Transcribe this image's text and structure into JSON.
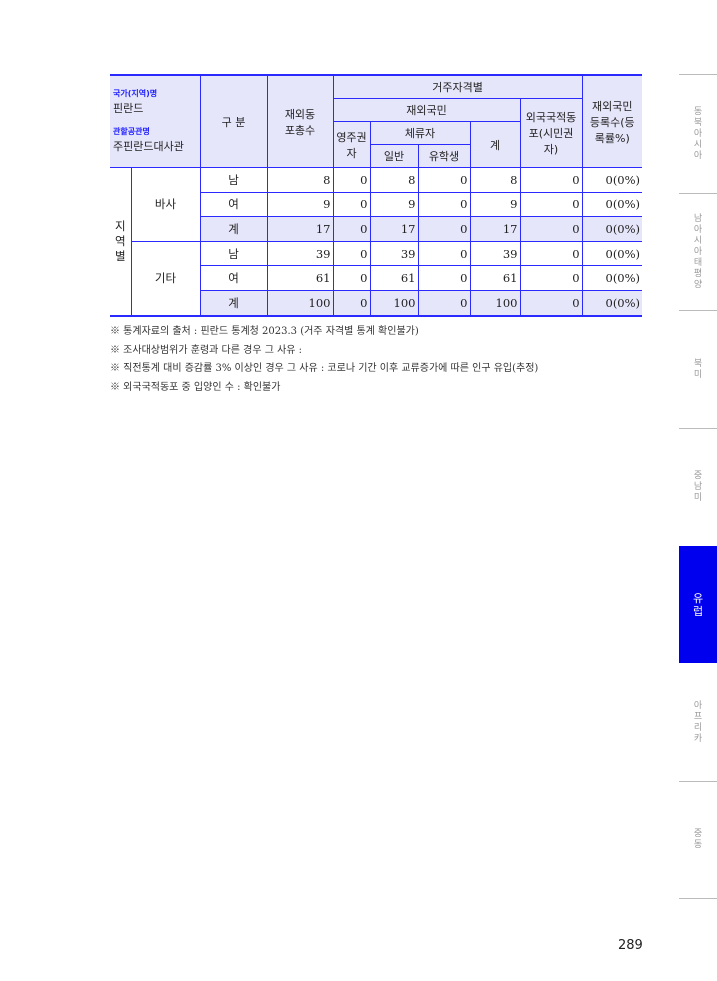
{
  "header": {
    "country_label": "국가(지역)명",
    "country": "핀란드",
    "office_label": "관할공관명",
    "office": "주핀란드대사관",
    "category": "구 분",
    "total": "재외동포총수",
    "residence": "거주자격별",
    "nationals": "재외국민",
    "permanent": "영주권자",
    "sojourner": "체류자",
    "general": "일반",
    "student": "유학생",
    "subtotal": "계",
    "foreign": "외국국적동포(시민권자)",
    "registered": "재외국민등록수(등록률%)"
  },
  "region_label": "지역별",
  "groups": [
    {
      "name": "바사",
      "rows": [
        {
          "sex": "남",
          "total": "8",
          "permanent": "0",
          "general": "8",
          "student": "0",
          "subtotal": "8",
          "foreign": "0",
          "registered": "0(0%)"
        },
        {
          "sex": "여",
          "total": "9",
          "permanent": "0",
          "general": "9",
          "student": "0",
          "subtotal": "9",
          "foreign": "0",
          "registered": "0(0%)"
        },
        {
          "sex": "계",
          "total": "17",
          "permanent": "0",
          "general": "17",
          "student": "0",
          "subtotal": "17",
          "foreign": "0",
          "registered": "0(0%)"
        }
      ]
    },
    {
      "name": "기타",
      "rows": [
        {
          "sex": "남",
          "total": "39",
          "permanent": "0",
          "general": "39",
          "student": "0",
          "subtotal": "39",
          "foreign": "0",
          "registered": "0(0%)"
        },
        {
          "sex": "여",
          "total": "61",
          "permanent": "0",
          "general": "61",
          "student": "0",
          "subtotal": "61",
          "foreign": "0",
          "registered": "0(0%)"
        },
        {
          "sex": "계",
          "total": "100",
          "permanent": "0",
          "general": "100",
          "student": "0",
          "subtotal": "100",
          "foreign": "0",
          "registered": "0(0%)"
        }
      ]
    }
  ],
  "notes": [
    "※ 통계자료의 출처 : 핀란드 통계청 2023.3 (거주 자격별 통계 확인불가)",
    "※ 조사대상범위가 훈령과 다른 경우 그 사유 :",
    "※ 직전통계 대비 증감률 3% 이상인 경우 그 사유 : 코로나 기간 이후 교류증가에 따른 인구 유입(추정)",
    "※ 외국국적동포 중 입양인 수 : 확인불가"
  ],
  "side_tabs": [
    {
      "label": "동북아시아"
    },
    {
      "label": "남아시아태평양"
    },
    {
      "label": "북미"
    },
    {
      "label": "중남미"
    },
    {
      "label": "유럽",
      "active": true
    },
    {
      "label": "아프리카"
    },
    {
      "label": "중동"
    }
  ],
  "colors": {
    "accent": "#0000ee",
    "border": "#2a2aff",
    "header_bg": "#e6e6fb"
  },
  "page_number": "289"
}
